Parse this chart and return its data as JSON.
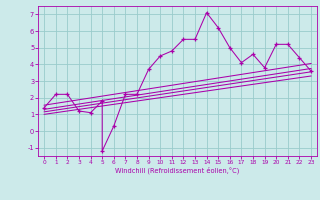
{
  "xlabel": "Windchill (Refroidissement éolien,°C)",
  "bg_color": "#cceaea",
  "line_color": "#aa00aa",
  "grid_color": "#99cccc",
  "xlim": [
    -0.5,
    23.5
  ],
  "ylim": [
    -1.5,
    7.5
  ],
  "xticks": [
    0,
    1,
    2,
    3,
    4,
    5,
    6,
    7,
    8,
    9,
    10,
    11,
    12,
    13,
    14,
    15,
    16,
    17,
    18,
    19,
    20,
    21,
    22,
    23
  ],
  "yticks": [
    -1,
    0,
    1,
    2,
    3,
    4,
    5,
    6,
    7
  ],
  "scatter_x": [
    0,
    1,
    2,
    3,
    4,
    5,
    5,
    6,
    7,
    8,
    9,
    10,
    11,
    12,
    13,
    14,
    15,
    16,
    17,
    18,
    19,
    20,
    21,
    22,
    23
  ],
  "scatter_y": [
    1.4,
    2.2,
    2.2,
    1.2,
    1.1,
    1.8,
    -1.2,
    0.3,
    2.2,
    2.2,
    3.7,
    4.5,
    4.8,
    5.5,
    5.5,
    7.1,
    6.2,
    5.0,
    4.1,
    4.6,
    3.8,
    5.2,
    5.2,
    4.4,
    3.6
  ],
  "line1_x": [
    0,
    23
  ],
  "line1_y": [
    1.15,
    3.55
  ],
  "line2_x": [
    0,
    23
  ],
  "line2_y": [
    1.0,
    3.3
  ],
  "line3_x": [
    0,
    23
  ],
  "line3_y": [
    1.3,
    3.75
  ],
  "line4_x": [
    0,
    23
  ],
  "line4_y": [
    1.55,
    4.05
  ]
}
